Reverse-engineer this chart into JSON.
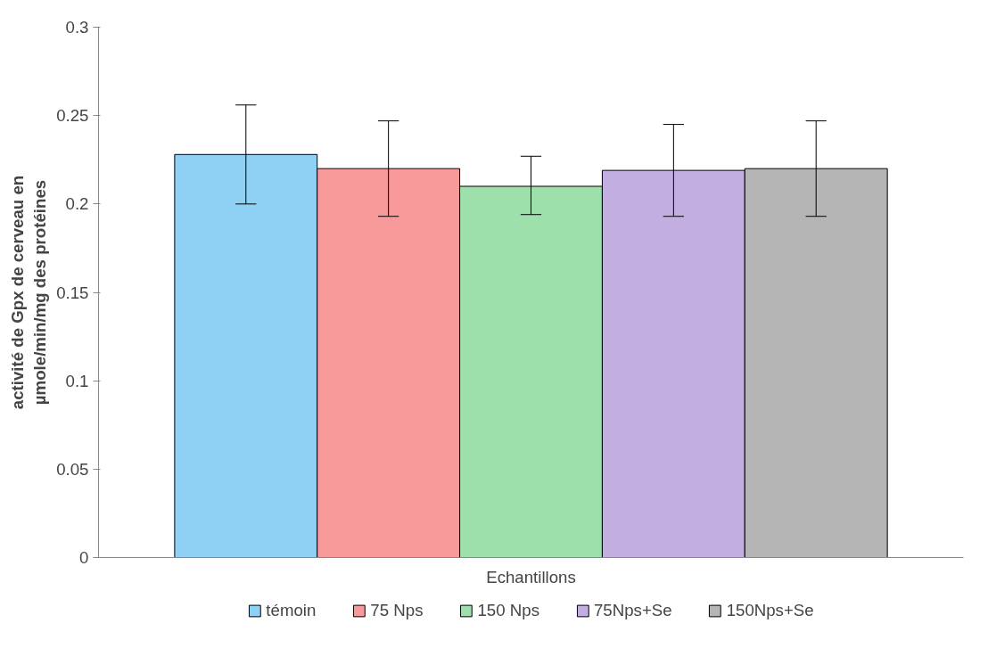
{
  "chart_data": {
    "type": "bar",
    "xlabel": "Echantillons",
    "ylabel": "activité de Gpx de cerveau en\nµmole/min/mg des protéines",
    "categories": [
      null
    ],
    "ylim": [
      0,
      0.3
    ],
    "yticks": [
      {
        "value": 0,
        "label": "0"
      },
      0.05,
      {
        "value": 0.1,
        "label": "0.1"
      },
      0.15,
      {
        "value": 0.2,
        "label": "0.2"
      },
      0.25,
      {
        "value": 0.3,
        "label": "0.3"
      }
    ],
    "grid": false,
    "legend": "bottom",
    "tick_labels": "y",
    "series": [
      {
        "name": "témoin",
        "color": "#8fd0f5",
        "values": [
          0.228
        ],
        "errors": [
          [
            0.2,
            0.256
          ]
        ]
      },
      {
        "name": "75 Nps",
        "color": "#f99a9a",
        "values": [
          0.22
        ],
        "errors": [
          [
            0.193,
            0.247
          ]
        ]
      },
      {
        "name": "150 Nps",
        "color": "#9ee0ab",
        "values": [
          0.21
        ],
        "errors": [
          [
            0.194,
            0.227
          ]
        ]
      },
      {
        "name": "75Nps+Se",
        "color": "#c2aee0",
        "values": [
          0.219
        ],
        "errors": [
          [
            0.193,
            0.245
          ]
        ]
      },
      {
        "name": "150Nps+Se",
        "color": "#b5b5b5",
        "values": [
          0.22
        ],
        "errors": [
          [
            0.193,
            0.247
          ]
        ]
      }
    ]
  }
}
